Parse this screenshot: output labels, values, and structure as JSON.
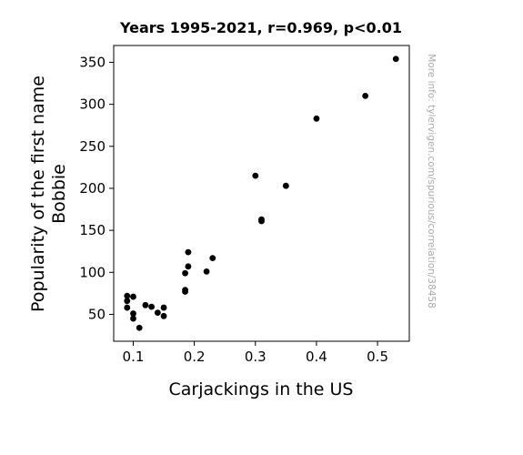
{
  "chart_data": {
    "type": "scatter",
    "title": "Years 1995-2021, r=0.969, p<0.01",
    "xlabel": "Carjackings in the US",
    "ylabel_lines": [
      "Popularity of the first name",
      "Bobbie"
    ],
    "xlim": [
      0.068,
      0.552
    ],
    "ylim": [
      18,
      370
    ],
    "xticks": [
      0.1,
      0.2,
      0.3,
      0.4,
      0.5
    ],
    "xtick_labels": [
      "0.1",
      "0.2",
      "0.3",
      "0.4",
      "0.5"
    ],
    "yticks": [
      50,
      100,
      150,
      200,
      250,
      300,
      350
    ],
    "ytick_labels": [
      "50",
      "100",
      "150",
      "200",
      "250",
      "300",
      "350"
    ],
    "grid": false,
    "marker_color": "#000000",
    "points": [
      {
        "x": 0.53,
        "y": 354
      },
      {
        "x": 0.48,
        "y": 310
      },
      {
        "x": 0.4,
        "y": 283
      },
      {
        "x": 0.35,
        "y": 203
      },
      {
        "x": 0.3,
        "y": 215
      },
      {
        "x": 0.31,
        "y": 163
      },
      {
        "x": 0.31,
        "y": 161
      },
      {
        "x": 0.23,
        "y": 117
      },
      {
        "x": 0.22,
        "y": 101
      },
      {
        "x": 0.19,
        "y": 124
      },
      {
        "x": 0.19,
        "y": 107
      },
      {
        "x": 0.185,
        "y": 99
      },
      {
        "x": 0.185,
        "y": 79
      },
      {
        "x": 0.185,
        "y": 77
      },
      {
        "x": 0.15,
        "y": 58
      },
      {
        "x": 0.15,
        "y": 48
      },
      {
        "x": 0.14,
        "y": 52
      },
      {
        "x": 0.13,
        "y": 59
      },
      {
        "x": 0.12,
        "y": 61
      },
      {
        "x": 0.11,
        "y": 34
      },
      {
        "x": 0.1,
        "y": 71
      },
      {
        "x": 0.1,
        "y": 51
      },
      {
        "x": 0.1,
        "y": 45
      },
      {
        "x": 0.09,
        "y": 72
      },
      {
        "x": 0.09,
        "y": 66
      },
      {
        "x": 0.09,
        "y": 58
      }
    ]
  },
  "watermark": "More info: tylervigen.com/spurious/correlation/38458"
}
